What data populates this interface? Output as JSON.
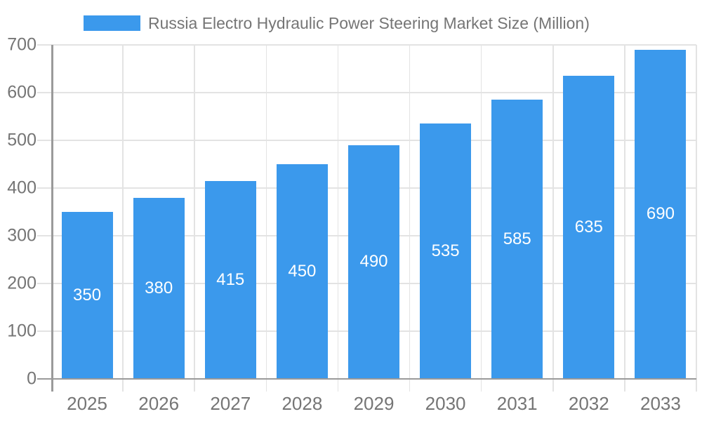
{
  "chart_data": {
    "type": "bar",
    "title": "Russia Electro Hydraulic Power Steering Market Size (Million)",
    "categories": [
      "2025",
      "2026",
      "2027",
      "2028",
      "2029",
      "2030",
      "2031",
      "2032",
      "2033"
    ],
    "values": [
      350,
      380,
      415,
      450,
      490,
      535,
      585,
      635,
      690
    ],
    "bar_value_labels": [
      "350",
      "380",
      "415",
      "450",
      "490",
      "535",
      "585",
      "635",
      "690"
    ],
    "xlabel": "",
    "ylabel": "",
    "ylim": [
      0,
      700
    ],
    "yticks": [
      0,
      100,
      200,
      300,
      400,
      500,
      600,
      700
    ],
    "grid": true,
    "legend_position": "top-center",
    "colors": {
      "bar": "#3B99EC",
      "axis_line": "#9A9A9A",
      "gridline": "#E3E3E3",
      "tick_label": "#757575",
      "bar_label": "#FFFFFF",
      "background": "#FFFFFF"
    }
  }
}
